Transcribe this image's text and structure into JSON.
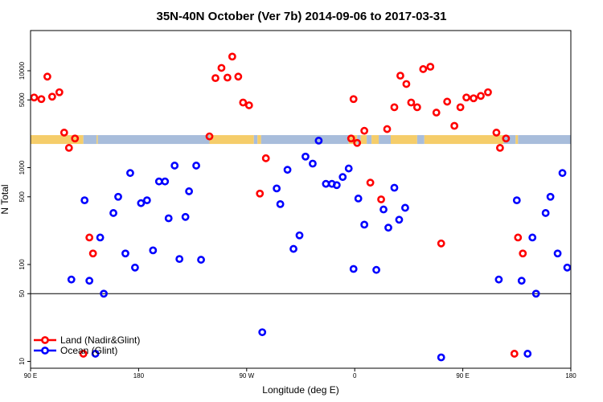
{
  "chart_data": {
    "type": "scatter",
    "title": "35N-40N October (Ver 7b)   2014-09-06 to 2017-03-31",
    "xlabel": "Longitude (deg E)",
    "ylabel": "N Total",
    "x_ticks": [
      {
        "value": 90,
        "label": "90 E"
      },
      {
        "value": 180,
        "label": "180"
      },
      {
        "value": 270,
        "label": "90 W"
      },
      {
        "value": 360,
        "label": "0"
      },
      {
        "value": 450,
        "label": "90 E"
      },
      {
        "value": 540,
        "label": "180"
      }
    ],
    "xlim": [
      90,
      540
    ],
    "y_scale": "log",
    "y_ticks": [
      {
        "value": 10,
        "label": "10"
      },
      {
        "value": 50,
        "label": "50"
      },
      {
        "value": 100,
        "label": "100"
      },
      {
        "value": 500,
        "label": "500"
      },
      {
        "value": 1000,
        "label": "1000"
      },
      {
        "value": 5000,
        "label": "5000"
      },
      {
        "value": 10000,
        "label": "10000"
      }
    ],
    "ylim": [
      8.5,
      26000
    ],
    "reference_line": 50,
    "legend_position": "bottom-left",
    "series": [
      {
        "name": "Land (Nadir&Glint)",
        "color": "#ff0000",
        "points": [
          [
            93,
            5300
          ],
          [
            99,
            5100
          ],
          [
            104,
            8700
          ],
          [
            108,
            5400
          ],
          [
            114,
            6000
          ],
          [
            118,
            2300
          ],
          [
            122,
            1600
          ],
          [
            127,
            2000
          ],
          [
            134,
            12
          ],
          [
            139,
            190
          ],
          [
            142,
            130
          ],
          [
            239,
            2100
          ],
          [
            244,
            8400
          ],
          [
            249,
            10700
          ],
          [
            254,
            8500
          ],
          [
            258,
            14000
          ],
          [
            263,
            8700
          ],
          [
            267,
            4700
          ],
          [
            272,
            4400
          ],
          [
            281,
            540
          ],
          [
            286,
            1250
          ],
          [
            357,
            2000
          ],
          [
            359,
            5100
          ],
          [
            362,
            1800
          ],
          [
            368,
            2400
          ],
          [
            373,
            700
          ],
          [
            382,
            470
          ],
          [
            387,
            2500
          ],
          [
            393,
            4200
          ],
          [
            398,
            8900
          ],
          [
            403,
            7300
          ],
          [
            407,
            4700
          ],
          [
            412,
            4200
          ],
          [
            417,
            10400
          ],
          [
            423,
            11000
          ],
          [
            428,
            3700
          ],
          [
            432,
            165
          ],
          [
            437,
            4800
          ],
          [
            443,
            2700
          ],
          [
            448,
            4200
          ],
          [
            453,
            5300
          ],
          [
            459,
            5200
          ],
          [
            465,
            5500
          ],
          [
            471,
            6000
          ],
          [
            478,
            2300
          ],
          [
            481,
            1600
          ],
          [
            486,
            2000
          ],
          [
            493,
            12
          ],
          [
            496,
            190
          ],
          [
            500,
            130
          ]
        ]
      },
      {
        "name": "Ocean (Glint)",
        "color": "#0000ff",
        "points": [
          [
            124,
            70
          ],
          [
            135,
            460
          ],
          [
            139,
            68
          ],
          [
            144,
            12
          ],
          [
            148,
            190
          ],
          [
            151,
            50
          ],
          [
            159,
            340
          ],
          [
            163,
            500
          ],
          [
            169,
            130
          ],
          [
            173,
            880
          ],
          [
            177,
            93
          ],
          [
            182,
            430
          ],
          [
            187,
            460
          ],
          [
            192,
            140
          ],
          [
            197,
            720
          ],
          [
            202,
            720
          ],
          [
            205,
            300
          ],
          [
            210,
            1050
          ],
          [
            214,
            114
          ],
          [
            219,
            310
          ],
          [
            222,
            570
          ],
          [
            228,
            1050
          ],
          [
            232,
            112
          ],
          [
            283,
            20
          ],
          [
            295,
            610
          ],
          [
            298,
            420
          ],
          [
            304,
            950
          ],
          [
            309,
            145
          ],
          [
            314,
            200
          ],
          [
            319,
            1300
          ],
          [
            325,
            1100
          ],
          [
            330,
            1900
          ],
          [
            336,
            680
          ],
          [
            341,
            680
          ],
          [
            345,
            660
          ],
          [
            350,
            800
          ],
          [
            355,
            980
          ],
          [
            359,
            90
          ],
          [
            363,
            480
          ],
          [
            368,
            258
          ],
          [
            378,
            88
          ],
          [
            384,
            370
          ],
          [
            388,
            240
          ],
          [
            393,
            620
          ],
          [
            397,
            290
          ],
          [
            402,
            385
          ],
          [
            432,
            11
          ],
          [
            480,
            70
          ],
          [
            495,
            460
          ],
          [
            499,
            68
          ],
          [
            504,
            12
          ],
          [
            508,
            190
          ],
          [
            511,
            50
          ],
          [
            519,
            340
          ],
          [
            523,
            500
          ],
          [
            529,
            130
          ],
          [
            533,
            880
          ],
          [
            537,
            93
          ]
        ]
      }
    ],
    "band": {
      "value": 1950,
      "segments": [
        {
          "from": 90,
          "to": 134,
          "color": "#f5cd6a"
        },
        {
          "from": 134,
          "to": 145,
          "color": "#a8bddb"
        },
        {
          "from": 145,
          "to": 146,
          "color": "#f5cd6a"
        },
        {
          "from": 146,
          "to": 239,
          "color": "#a8bddb"
        },
        {
          "from": 239,
          "to": 276,
          "color": "#f5cd6a"
        },
        {
          "from": 276,
          "to": 279,
          "color": "#a8bddb"
        },
        {
          "from": 279,
          "to": 282,
          "color": "#f5cd6a"
        },
        {
          "from": 282,
          "to": 355,
          "color": "#a8bddb"
        },
        {
          "from": 355,
          "to": 362,
          "color": "#f5cd6a"
        },
        {
          "from": 362,
          "to": 365,
          "color": "#a8bddb"
        },
        {
          "from": 365,
          "to": 370,
          "color": "#f5cd6a"
        },
        {
          "from": 370,
          "to": 374,
          "color": "#a8bddb"
        },
        {
          "from": 374,
          "to": 380,
          "color": "#f5cd6a"
        },
        {
          "from": 380,
          "to": 390,
          "color": "#a8bddb"
        },
        {
          "from": 390,
          "to": 412,
          "color": "#f5cd6a"
        },
        {
          "from": 412,
          "to": 418,
          "color": "#a8bddb"
        },
        {
          "from": 418,
          "to": 484,
          "color": "#f5cd6a"
        },
        {
          "from": 484,
          "to": 494,
          "color": "#a8bddb"
        },
        {
          "from": 494,
          "to": 496,
          "color": "#f5cd6a"
        },
        {
          "from": 496,
          "to": 540,
          "color": "#a8bddb"
        }
      ]
    }
  }
}
